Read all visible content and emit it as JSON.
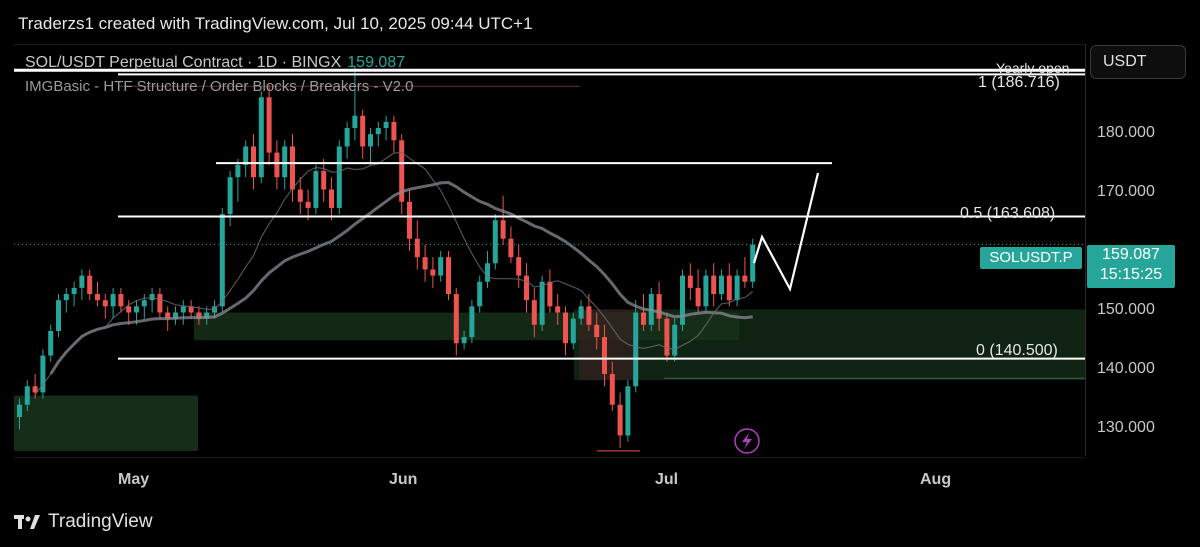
{
  "header": {
    "created": "Traderzs1 created with TradingView.com, Jul 10, 2025 09:44 UTC+1"
  },
  "symbol": {
    "title": "SOL/USDT Perpetual Contract · 1D · BINGX",
    "price": "159.087"
  },
  "indicator": {
    "name": "IMGBasic - HTF Structure / Order Blocks / Breakers - V2.0"
  },
  "axis": {
    "currency": "USDT",
    "ticks": [
      "180.000",
      "170.000",
      "160.000",
      "150.000",
      "140.000",
      "130.000"
    ]
  },
  "tags": {
    "symbol": "SOLUSDT.P",
    "price": "159.087",
    "countdown": "15:15:25"
  },
  "levels": {
    "yearly_open": "Yearly open",
    "fib1": "1 (186.716)",
    "fib05": "0.5 (163.608)",
    "fib0": "0 (140.500)"
  },
  "xaxis": {
    "months": [
      "May",
      "Jun",
      "Jul",
      "Aug"
    ]
  },
  "footer": {
    "brand": "TradingView"
  },
  "colors": {
    "up": "#26a69a",
    "down": "#ef5350",
    "bg": "#000000",
    "accent": "#26a69a"
  },
  "chart_data": {
    "type": "candlestick",
    "title": "SOL/USDT Perpetual Contract · 1D · BINGX",
    "ylim": [
      124.5,
      191.5
    ],
    "yticks": [
      180,
      170,
      160,
      150,
      140,
      130
    ],
    "x_labels": [
      "May",
      "Jun",
      "Jul",
      "Aug"
    ],
    "current_price": 159.087,
    "ohlc": [
      [
        131,
        134,
        129,
        133
      ],
      [
        133,
        137,
        132,
        136
      ],
      [
        136,
        138,
        134,
        135
      ],
      [
        135,
        142,
        134,
        141
      ],
      [
        141,
        146,
        140,
        145
      ],
      [
        145,
        151,
        144,
        150
      ],
      [
        150,
        152,
        148,
        151
      ],
      [
        151,
        153,
        149,
        152
      ],
      [
        152,
        155,
        150,
        154
      ],
      [
        154,
        155,
        150,
        151
      ],
      [
        151,
        153,
        149,
        150
      ],
      [
        150,
        151,
        147,
        149
      ],
      [
        149,
        152,
        147,
        151
      ],
      [
        151,
        152,
        148,
        149
      ],
      [
        149,
        150,
        146,
        148
      ],
      [
        148,
        150,
        146,
        149
      ],
      [
        149,
        151,
        147,
        150
      ],
      [
        150,
        152,
        148,
        151
      ],
      [
        151,
        152,
        147,
        148
      ],
      [
        148,
        149,
        145,
        147
      ],
      [
        147,
        149,
        146,
        148
      ],
      [
        148,
        150,
        146,
        149
      ],
      [
        149,
        150,
        147,
        148
      ],
      [
        148,
        149,
        146,
        147
      ],
      [
        147,
        149,
        146,
        148
      ],
      [
        148,
        150,
        147,
        149
      ],
      [
        149,
        165,
        148,
        164
      ],
      [
        164,
        171,
        162,
        170
      ],
      [
        170,
        173,
        166,
        172
      ],
      [
        172,
        176,
        170,
        175
      ],
      [
        175,
        177,
        168,
        170
      ],
      [
        170,
        184,
        169,
        183
      ],
      [
        183,
        185,
        172,
        174
      ],
      [
        174,
        176,
        168,
        170
      ],
      [
        170,
        176,
        168,
        175
      ],
      [
        175,
        177,
        166,
        168
      ],
      [
        168,
        170,
        164,
        166
      ],
      [
        166,
        168,
        163,
        165
      ],
      [
        165,
        172,
        164,
        171
      ],
      [
        171,
        173,
        166,
        168
      ],
      [
        168,
        170,
        163,
        165
      ],
      [
        165,
        176,
        164,
        175
      ],
      [
        175,
        179,
        173,
        178
      ],
      [
        178,
        188,
        176,
        180
      ],
      [
        180,
        181,
        173,
        175
      ],
      [
        175,
        178,
        172,
        177
      ],
      [
        177,
        179,
        175,
        178
      ],
      [
        178,
        180,
        176,
        179
      ],
      [
        179,
        180,
        174,
        176
      ],
      [
        176,
        177,
        164,
        166
      ],
      [
        166,
        168,
        158,
        160
      ],
      [
        160,
        163,
        155,
        157
      ],
      [
        157,
        159,
        153,
        155
      ],
      [
        155,
        157,
        152,
        154
      ],
      [
        154,
        158,
        153,
        157
      ],
      [
        157,
        158,
        150,
        151
      ],
      [
        151,
        152,
        141,
        143
      ],
      [
        143,
        145,
        142,
        144
      ],
      [
        144,
        150,
        143,
        149
      ],
      [
        149,
        154,
        148,
        153
      ],
      [
        153,
        158,
        152,
        156
      ],
      [
        156,
        164,
        155,
        163
      ],
      [
        163,
        167,
        159,
        160
      ],
      [
        160,
        162,
        156,
        157
      ],
      [
        157,
        159,
        152,
        154
      ],
      [
        154,
        156,
        148,
        150
      ],
      [
        150,
        152,
        144,
        146
      ],
      [
        146,
        154,
        145,
        153
      ],
      [
        153,
        155,
        148,
        149
      ],
      [
        149,
        151,
        146,
        148
      ],
      [
        148,
        149,
        141,
        143
      ],
      [
        143,
        148,
        142,
        147
      ],
      [
        147,
        150,
        146,
        149
      ],
      [
        149,
        151,
        145,
        146
      ],
      [
        146,
        148,
        142,
        144
      ],
      [
        144,
        146,
        136,
        138
      ],
      [
        138,
        140,
        132,
        133
      ],
      [
        133,
        135,
        126,
        128
      ],
      [
        128,
        137,
        127,
        136
      ],
      [
        136,
        150,
        135,
        148
      ],
      [
        148,
        151,
        145,
        146
      ],
      [
        146,
        152,
        145,
        151
      ],
      [
        151,
        153,
        145,
        147
      ],
      [
        147,
        148,
        140,
        141
      ],
      [
        141,
        147,
        140,
        146
      ],
      [
        146,
        155,
        145,
        154
      ],
      [
        154,
        156,
        150,
        152
      ],
      [
        152,
        155,
        148,
        149
      ],
      [
        149,
        155,
        148,
        154
      ],
      [
        154,
        156,
        149,
        151
      ],
      [
        151,
        155,
        150,
        154
      ],
      [
        154,
        156,
        149,
        150
      ],
      [
        150,
        155,
        149,
        154
      ],
      [
        154,
        157,
        152,
        153
      ],
      [
        153,
        160,
        152,
        159
      ]
    ],
    "horizontal_levels": [
      {
        "label": "1 (186.716)",
        "value": 186.716
      },
      {
        "label": "0.5 (163.608)",
        "value": 163.608
      },
      {
        "label": "0 (140.500)",
        "value": 140.5
      }
    ]
  }
}
